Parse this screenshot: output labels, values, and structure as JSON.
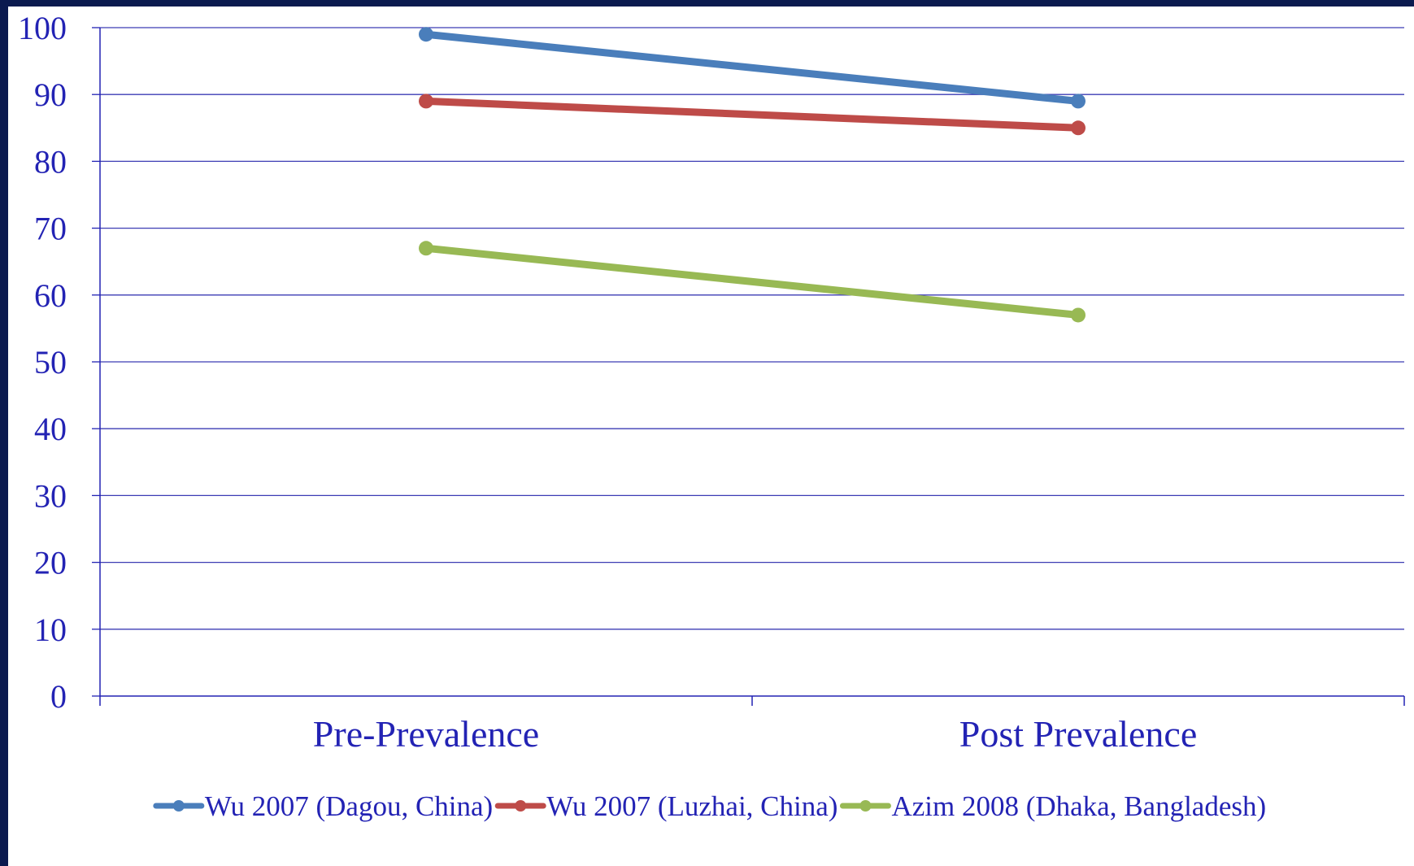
{
  "chart_data": {
    "type": "line",
    "categories": [
      "Pre-Prevalence",
      "Post Prevalence"
    ],
    "series": [
      {
        "name": "Wu 2007 (Dagou, China)",
        "values": [
          99,
          89
        ],
        "color": "#4a7ebb"
      },
      {
        "name": "Wu 2007 (Luzhai, China)",
        "values": [
          89,
          85
        ],
        "color": "#be4b48"
      },
      {
        "name": "Azim 2008 (Dhaka, Bangladesh)",
        "values": [
          67,
          57
        ],
        "color": "#98b954"
      }
    ],
    "ylim": [
      0,
      100
    ],
    "ytick_step": 10,
    "yticks": [
      "0",
      "10",
      "20",
      "30",
      "40",
      "50",
      "60",
      "70",
      "80",
      "90",
      "100"
    ],
    "grid": true,
    "legend": "bottom",
    "colors": {
      "axis": "#2323b4",
      "grid": "#3c3cb4",
      "background": "#0b1a4f"
    }
  }
}
